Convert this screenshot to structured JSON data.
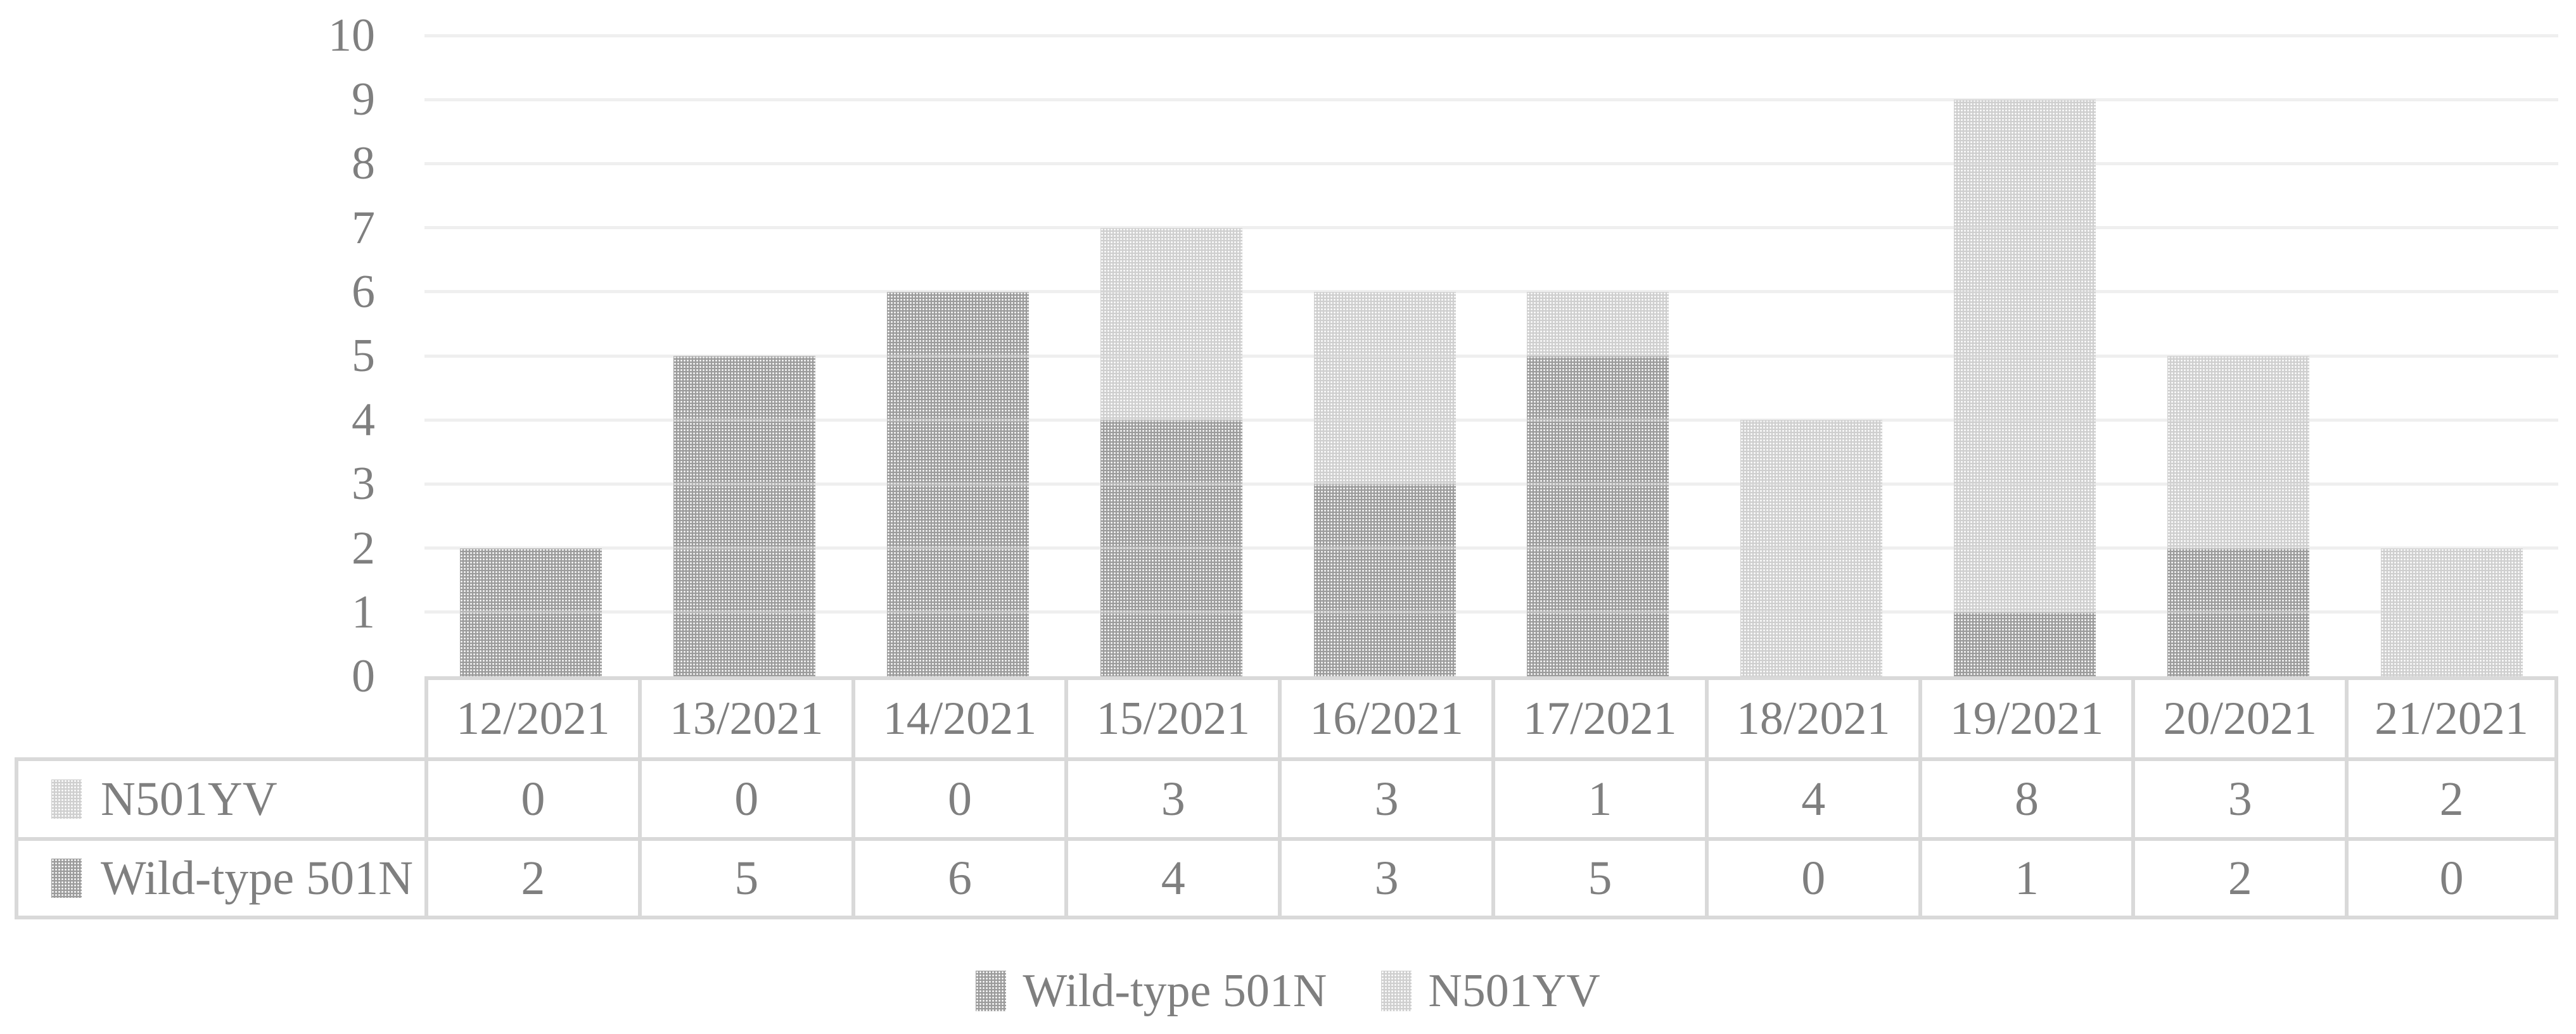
{
  "chart_data": {
    "type": "bar",
    "stacked": true,
    "title": "",
    "xlabel": "",
    "ylabel": "",
    "categories": [
      "12/2021",
      "13/2021",
      "14/2021",
      "15/2021",
      "16/2021",
      "17/2021",
      "18/2021",
      "19/2021",
      "20/2021",
      "21/2021"
    ],
    "series": [
      {
        "name": "Wild-type 501N",
        "values": [
          2,
          5,
          6,
          4,
          3,
          5,
          0,
          1,
          2,
          0
        ],
        "color": "#9c9c9c",
        "pattern": "dotted-grid-dark"
      },
      {
        "name": "N501YV",
        "values": [
          0,
          0,
          0,
          3,
          3,
          1,
          4,
          8,
          3,
          2
        ],
        "color": "#cfcfcf",
        "pattern": "dotted-grid-light"
      }
    ],
    "ylim": [
      0,
      10
    ],
    "yticks": [
      0,
      1,
      2,
      3,
      4,
      5,
      6,
      7,
      8,
      9,
      10
    ],
    "grid": true,
    "legend_position": "bottom",
    "data_table_shown": true
  },
  "table": {
    "rows": [
      {
        "label": "N501YV",
        "series": "N501YV",
        "values": [
          "0",
          "0",
          "0",
          "3",
          "3",
          "1",
          "4",
          "8",
          "3",
          "2"
        ]
      },
      {
        "label": "Wild-type 501N",
        "series": "Wild-type 501N",
        "values": [
          "2",
          "5",
          "6",
          "4",
          "3",
          "5",
          "0",
          "1",
          "2",
          "0"
        ]
      }
    ]
  },
  "legend": {
    "items": [
      {
        "label": "Wild-type 501N",
        "pattern": "dotted-grid-dark"
      },
      {
        "label": "N501YV",
        "pattern": "dotted-grid-light"
      }
    ]
  },
  "colors": {
    "series_dark": "#9c9c9c",
    "series_light": "#cfcfcf",
    "text": "#7f7f7f",
    "gridline": "#ededed",
    "table_border": "#d9d9d9",
    "background": "#ffffff"
  }
}
